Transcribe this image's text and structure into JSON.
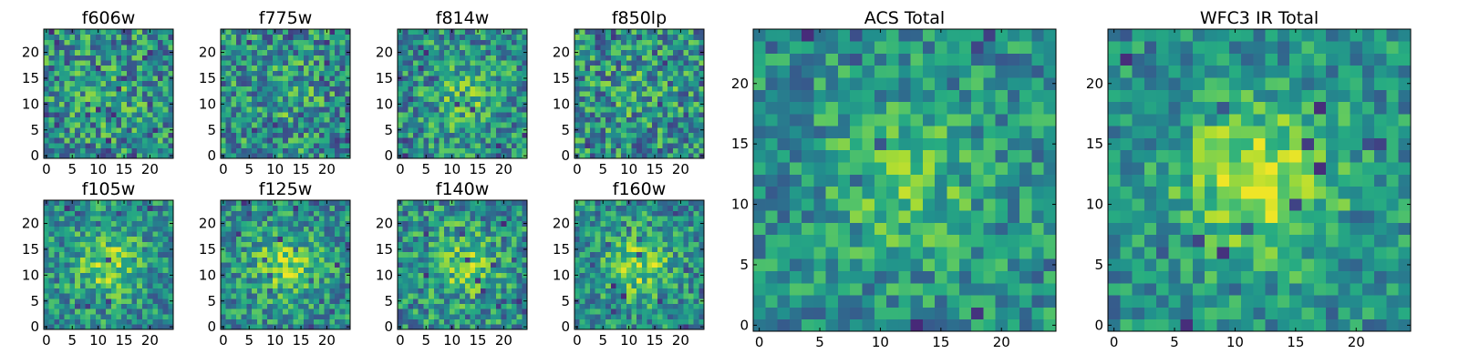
{
  "chart_data": [
    {
      "type": "heatmap",
      "title": "f606w",
      "grid": [
        25,
        25
      ],
      "xticks": [
        0,
        5,
        10,
        15,
        20
      ],
      "yticks": [
        0,
        5,
        10,
        15,
        20
      ],
      "xlim": [
        -0.5,
        24.5
      ],
      "ylim": [
        -0.5,
        24.5
      ],
      "colormap": "viridis",
      "seed": 11,
      "blob_strength": 0.08,
      "noise": 0.62,
      "dark_fraction": 0.06
    },
    {
      "type": "heatmap",
      "title": "f775w",
      "grid": [
        25,
        25
      ],
      "xticks": [
        0,
        5,
        10,
        15,
        20
      ],
      "yticks": [
        0,
        5,
        10,
        15,
        20
      ],
      "xlim": [
        -0.5,
        24.5
      ],
      "ylim": [
        -0.5,
        24.5
      ],
      "colormap": "viridis",
      "seed": 23,
      "blob_strength": 0.1,
      "noise": 0.6,
      "dark_fraction": 0.06
    },
    {
      "type": "heatmap",
      "title": "f814w",
      "grid": [
        25,
        25
      ],
      "xticks": [
        0,
        5,
        10,
        15,
        20
      ],
      "yticks": [
        0,
        5,
        10,
        15,
        20
      ],
      "xlim": [
        -0.5,
        24.5
      ],
      "ylim": [
        -0.5,
        24.5
      ],
      "colormap": "viridis",
      "seed": 37,
      "blob_strength": 0.2,
      "noise": 0.55,
      "dark_fraction": 0.05
    },
    {
      "type": "heatmap",
      "title": "f850lp",
      "grid": [
        25,
        25
      ],
      "xticks": [
        0,
        5,
        10,
        15,
        20
      ],
      "yticks": [
        0,
        5,
        10,
        15,
        20
      ],
      "xlim": [
        -0.5,
        24.5
      ],
      "ylim": [
        -0.5,
        24.5
      ],
      "colormap": "viridis",
      "seed": 41,
      "blob_strength": 0.08,
      "noise": 0.62,
      "dark_fraction": 0.06
    },
    {
      "type": "heatmap",
      "title": "f105w",
      "grid": [
        25,
        25
      ],
      "xticks": [
        0,
        5,
        10,
        15,
        20
      ],
      "yticks": [
        0,
        5,
        10,
        15,
        20
      ],
      "xlim": [
        -0.5,
        24.5
      ],
      "ylim": [
        -0.5,
        24.5
      ],
      "colormap": "viridis",
      "seed": 53,
      "blob_strength": 0.3,
      "noise": 0.5,
      "dark_fraction": 0.03
    },
    {
      "type": "heatmap",
      "title": "f125w",
      "grid": [
        25,
        25
      ],
      "xticks": [
        0,
        5,
        10,
        15,
        20
      ],
      "yticks": [
        0,
        5,
        10,
        15,
        20
      ],
      "xlim": [
        -0.5,
        24.5
      ],
      "ylim": [
        -0.5,
        24.5
      ],
      "colormap": "viridis",
      "seed": 67,
      "blob_strength": 0.3,
      "noise": 0.5,
      "dark_fraction": 0.03
    },
    {
      "type": "heatmap",
      "title": "f140w",
      "grid": [
        25,
        25
      ],
      "xticks": [
        0,
        5,
        10,
        15,
        20
      ],
      "yticks": [
        0,
        5,
        10,
        15,
        20
      ],
      "xlim": [
        -0.5,
        24.5
      ],
      "ylim": [
        -0.5,
        24.5
      ],
      "colormap": "viridis",
      "seed": 79,
      "blob_strength": 0.25,
      "noise": 0.55,
      "dark_fraction": 0.04
    },
    {
      "type": "heatmap",
      "title": "f160w",
      "grid": [
        25,
        25
      ],
      "xticks": [
        0,
        5,
        10,
        15,
        20
      ],
      "yticks": [
        0,
        5,
        10,
        15,
        20
      ],
      "xlim": [
        -0.5,
        24.5
      ],
      "ylim": [
        -0.5,
        24.5
      ],
      "colormap": "viridis",
      "seed": 83,
      "blob_strength": 0.3,
      "noise": 0.5,
      "dark_fraction": 0.04
    },
    {
      "type": "heatmap",
      "title": "ACS Total",
      "grid": [
        25,
        25
      ],
      "xticks": [
        0,
        5,
        10,
        15,
        20
      ],
      "yticks": [
        0,
        5,
        10,
        15,
        20
      ],
      "xlim": [
        -0.5,
        24.5
      ],
      "ylim": [
        -0.5,
        24.5
      ],
      "colormap": "viridis",
      "seed": 97,
      "blob_strength": 0.22,
      "noise": 0.45,
      "dark_fraction": 0.03
    },
    {
      "type": "heatmap",
      "title": "WFC3 IR Total",
      "grid": [
        25,
        25
      ],
      "xticks": [
        0,
        5,
        10,
        15,
        20
      ],
      "yticks": [
        0,
        5,
        10,
        15,
        20
      ],
      "xlim": [
        -0.5,
        24.5
      ],
      "ylim": [
        -0.5,
        24.5
      ],
      "colormap": "viridis",
      "seed": 101,
      "blob_strength": 0.42,
      "noise": 0.42,
      "dark_fraction": 0.02
    }
  ]
}
